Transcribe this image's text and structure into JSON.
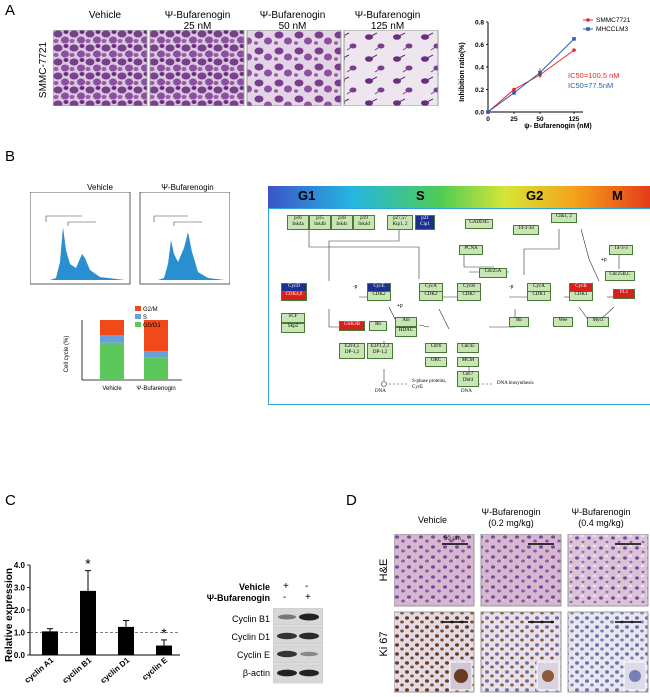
{
  "panels": {
    "a": "A",
    "b": "B",
    "c": "C",
    "d": "D"
  },
  "panelA": {
    "row_label": "SMMC-7721",
    "headers": [
      {
        "line1": "Vehicle",
        "line2": ""
      },
      {
        "line1": "Ψ-Bufarenogin",
        "line2": "25 nM"
      },
      {
        "line1": "Ψ-Bufarenogin",
        "line2": "50 nM"
      },
      {
        "line1": "Ψ-Bufarenogin",
        "line2": "125 nM"
      }
    ],
    "chart": {
      "ylabel": "Inhibition ratio(%)",
      "xlabel": "ψ- Bufarenogin (nM)",
      "yticks": [
        "0.0",
        "0.2",
        "0.4",
        "0.6",
        "0.8"
      ],
      "xticks": [
        "0",
        "25",
        "50",
        "125"
      ],
      "ic50_red": "IC50=100.5 nM",
      "ic50_blue": "IC50=77.5nM"
    }
  },
  "panelB": {
    "hist_titles": [
      "Vehicle",
      "Ψ-Bufarenogin"
    ],
    "bar_ylabel": "Cell cycle (%)",
    "bar_categories": [
      "Vehicle",
      "Ψ-Bufarenogin"
    ],
    "legend": [
      "G2/M",
      "S",
      "G0/G1"
    ],
    "phases": [
      "G1",
      "S",
      "G2",
      "M"
    ],
    "kegg": {
      "p16": "p16\nInk4a",
      "p15": "p15\nInk4b",
      "p18": "p18\nInk4c",
      "p19": "p19\nInk4d",
      "p27": "p27,57\nKip1, 2",
      "p21": "p21\nCip1",
      "gadd45": "GADD45",
      "chk12": "Chk1, 2",
      "ywhaq": "14-3-3σ",
      "ywhab": "14-3-3",
      "pcna": "PCNA",
      "cdc25a": "Cdc25A",
      "cdc25b": "Cdc25B,C",
      "cycd": "CycD",
      "cdk46": "CDK4,6",
      "cyce": "CycE",
      "cdk2": "CDK2",
      "cyca1": "CycA",
      "cdk2b": "CDK2",
      "cych": "CycH",
      "cdk7": "CDK7",
      "cyca2": "CycA",
      "cdk1": "CDK1",
      "cycb": "CycB",
      "cdk1b": "CDK1",
      "pl1": "PL1",
      "scf": "SCF",
      "skp2": "Skp2",
      "gsk3b": "GSK3B",
      "rb": "Rb",
      "abl": "Abl",
      "hdac": "HDAC",
      "rb2": "Rb",
      "wee": "Wee",
      "myt1": "Myt1",
      "e2f45": "E2F4,5\nDP-1,2",
      "e2f123": "E2F1,2,3\nDP-1,2",
      "cdc6": "Cdc6",
      "cdc45": "Cdc45",
      "orc": "ORC",
      "mcm": "MCM",
      "cdc7": "Cdc7\nDbf4",
      "p": "-p",
      "pp": "+p",
      "dna": "DNA",
      "dna2": "DNA",
      "sphase": "S-phase proteins,\nCycE",
      "dnabio": "DNA biosynthesis"
    }
  },
  "panelC": {
    "ylabel": "Relative expression",
    "yticks": [
      "0.0",
      "1.0",
      "2.0",
      "3.0",
      "4.0"
    ],
    "categories": [
      "cyclin A1",
      "cyclin B1",
      "cyclin D1",
      "cyclin E"
    ],
    "star": "*",
    "wb_rows": [
      "Vehicle",
      "Ψ-Bufarenogin"
    ],
    "wb_vehicle": [
      "+",
      "-"
    ],
    "wb_bufa": [
      "-",
      "+"
    ],
    "wb_bands": [
      "Cyclin B1",
      "Cyclin D1",
      "Cyclin E",
      "β-actin"
    ]
  },
  "panelD": {
    "headers": [
      {
        "line1": "Vehicle",
        "line2": ""
      },
      {
        "line1": "Ψ-Bufarenogin",
        "line2": "(0.2 mg/kg)"
      },
      {
        "line1": "Ψ-Bufarenogin",
        "line2": "(0.4 mg/kg)"
      }
    ],
    "rows": [
      "H&E",
      "Ki 67"
    ],
    "scale": "50 μm"
  },
  "chart_data": [
    {
      "type": "line",
      "x": [
        0,
        25,
        50,
        125
      ],
      "series": [
        {
          "name": "SMMC7721",
          "color": "#e8262a",
          "values": [
            0.0,
            0.2,
            0.33,
            0.55
          ]
        },
        {
          "name": "MHCCLM3",
          "color": "#2e5fb0",
          "values": [
            0.0,
            0.17,
            0.35,
            0.65
          ]
        }
      ],
      "xlabel": "ψ- Bufarenogin (nM)",
      "ylabel": "Inhibition ratio(%)",
      "ylim": [
        0,
        0.8
      ],
      "legend": "top-right"
    },
    {
      "type": "bar",
      "categories": [
        "Vehicle",
        "Ψ-Bufarenogin"
      ],
      "series": [
        {
          "name": "G0/G1",
          "color": "#5cc85c",
          "values": [
            62,
            38
          ]
        },
        {
          "name": "S",
          "color": "#6aa0d8",
          "values": [
            13,
            10
          ]
        },
        {
          "name": "G2/M",
          "color": "#f04a1a",
          "values": [
            25,
            52
          ]
        }
      ],
      "ylabel": "Cell cycle (%)",
      "ylim": [
        0,
        100
      ]
    },
    {
      "type": "bar",
      "categories": [
        "cyclin A1",
        "cyclin B1",
        "cyclin D1",
        "cyclin E"
      ],
      "values": [
        1.05,
        2.85,
        1.25,
        0.42
      ],
      "errors": [
        0.12,
        0.9,
        0.28,
        0.25
      ],
      "ylabel": "Relative expression",
      "ylim": [
        0,
        4.0
      ],
      "reference_line": 1.0
    }
  ]
}
